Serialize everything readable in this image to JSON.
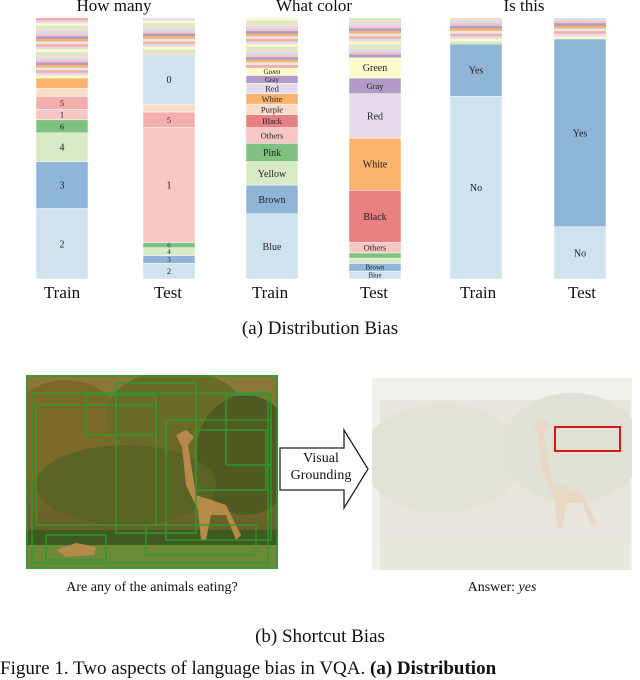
{
  "panel_a": {
    "caption": "(a)  Distribution Bias",
    "groups": [
      {
        "title": "How many",
        "labels": [
          "Train",
          "Test"
        ]
      },
      {
        "title": "What color",
        "labels": [
          "Train",
          "Test"
        ]
      },
      {
        "title": "Is this",
        "labels": [
          "Train",
          "Test"
        ]
      }
    ]
  },
  "chart_data": {
    "type": "bar",
    "stacked": true,
    "unit": "fraction of answers",
    "groups": [
      "How many",
      "What color",
      "Is this"
    ],
    "categories": [
      "Train",
      "Test"
    ],
    "bars": [
      {
        "group": "How many",
        "split": "Train",
        "segments": [
          {
            "label": "2",
            "value": 0.27,
            "color": "#cfe2ee"
          },
          {
            "label": "3",
            "value": 0.18,
            "color": "#8fb6d9"
          },
          {
            "label": "4",
            "value": 0.11,
            "color": "#d8ebc6"
          },
          {
            "label": "6",
            "value": 0.05,
            "color": "#7fc27f"
          },
          {
            "label": "1",
            "value": 0.04,
            "color": "#f8c6c4"
          },
          {
            "label": "5",
            "value": 0.05,
            "color": "#f4aeae"
          },
          {
            "label": "",
            "value": 0.03,
            "color": "#f7dcc8"
          },
          {
            "label": "",
            "value": 0.04,
            "color": "#f8b46c"
          },
          {
            "label": "",
            "value": 0.23,
            "color": "#e8e8e8"
          }
        ]
      },
      {
        "group": "How many",
        "split": "Test",
        "segments": [
          {
            "label": "2",
            "value": 0.06,
            "color": "#cfe2ee"
          },
          {
            "label": "3",
            "value": 0.03,
            "color": "#8fb6d9"
          },
          {
            "label": "4",
            "value": 0.03,
            "color": "#d8ebc6"
          },
          {
            "label": "6",
            "value": 0.02,
            "color": "#7fc27f"
          },
          {
            "label": "1",
            "value": 0.44,
            "color": "#f8c6c4"
          },
          {
            "label": "5",
            "value": 0.06,
            "color": "#f4aeae"
          },
          {
            "label": "",
            "value": 0.03,
            "color": "#f7dcc8"
          },
          {
            "label": "0",
            "value": 0.19,
            "color": "#cfe2ee"
          },
          {
            "label": "",
            "value": 0.14,
            "color": "#e8e8e8"
          }
        ]
      },
      {
        "group": "What color",
        "split": "Train",
        "segments": [
          {
            "label": "Blue",
            "value": 0.25,
            "color": "#cfe2ee"
          },
          {
            "label": "Brown",
            "value": 0.11,
            "color": "#8fb6d9"
          },
          {
            "label": "Yellow",
            "value": 0.09,
            "color": "#d8ebc6"
          },
          {
            "label": "Pink",
            "value": 0.07,
            "color": "#7fc27f"
          },
          {
            "label": "Others",
            "value": 0.06,
            "color": "#f8c6c4"
          },
          {
            "label": "Black",
            "value": 0.05,
            "color": "#e78080"
          },
          {
            "label": "Purple",
            "value": 0.04,
            "color": "#f7dcc8"
          },
          {
            "label": "White",
            "value": 0.04,
            "color": "#f8b46c"
          },
          {
            "label": "Red",
            "value": 0.04,
            "color": "#e6dbeb"
          },
          {
            "label": "Gray",
            "value": 0.03,
            "color": "#b29ac9"
          },
          {
            "label": "Green",
            "value": 0.03,
            "color": "#fdfbcb"
          },
          {
            "label": "",
            "value": 0.19,
            "color": "#e8e8e8"
          }
        ]
      },
      {
        "group": "What color",
        "split": "Test",
        "segments": [
          {
            "label": "Blue",
            "value": 0.03,
            "color": "#cfe2ee"
          },
          {
            "label": "Brown",
            "value": 0.03,
            "color": "#8fb6d9"
          },
          {
            "label": "",
            "value": 0.02,
            "color": "#d8ebc6"
          },
          {
            "label": "",
            "value": 0.02,
            "color": "#7fc27f"
          },
          {
            "label": "Others",
            "value": 0.04,
            "color": "#f8c6c4"
          },
          {
            "label": "Black",
            "value": 0.2,
            "color": "#e78080"
          },
          {
            "label": "White",
            "value": 0.2,
            "color": "#f8b46c"
          },
          {
            "label": "Red",
            "value": 0.17,
            "color": "#e6dbeb"
          },
          {
            "label": "Gray",
            "value": 0.06,
            "color": "#b29ac9"
          },
          {
            "label": "Green",
            "value": 0.08,
            "color": "#fdfbcb"
          },
          {
            "label": "",
            "value": 0.15,
            "color": "#e8e8e8"
          }
        ]
      },
      {
        "group": "Is this",
        "split": "Train",
        "segments": [
          {
            "label": "No",
            "value": 0.7,
            "color": "#cfe2ee"
          },
          {
            "label": "Yes",
            "value": 0.2,
            "color": "#8fb6d9"
          },
          {
            "label": "",
            "value": 0.1,
            "color": "#e8e8e8"
          }
        ]
      },
      {
        "group": "Is this",
        "split": "Test",
        "segments": [
          {
            "label": "No",
            "value": 0.2,
            "color": "#cfe2ee"
          },
          {
            "label": "Yes",
            "value": 0.72,
            "color": "#8fb6d9"
          },
          {
            "label": "",
            "value": 0.08,
            "color": "#e8e8e8"
          }
        ]
      }
    ]
  },
  "panel_b": {
    "caption": "(b)  Shortcut Bias",
    "arrow_label_1": "Visual",
    "arrow_label_2": "Grounding",
    "left_caption": "Are any of the animals eating?",
    "right_caption_prefix": "Answer: ",
    "right_caption_answer": "yes"
  },
  "figure_caption": {
    "prefix": "Figure 1. Two aspects of language bias in VQA. ",
    "bold": "(a) Distribution"
  }
}
